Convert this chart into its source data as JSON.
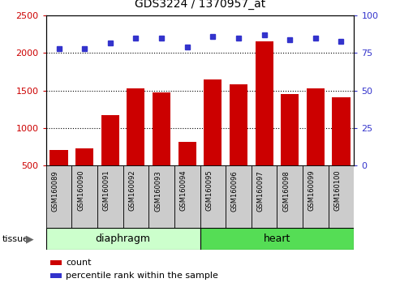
{
  "title": "GDS3224 / 1370957_at",
  "categories": [
    "GSM160089",
    "GSM160090",
    "GSM160091",
    "GSM160092",
    "GSM160093",
    "GSM160094",
    "GSM160095",
    "GSM160096",
    "GSM160097",
    "GSM160098",
    "GSM160099",
    "GSM160100"
  ],
  "counts": [
    700,
    720,
    1170,
    1530,
    1470,
    810,
    1650,
    1580,
    2160,
    1450,
    1530,
    1410
  ],
  "percentiles": [
    78,
    78,
    82,
    85,
    85,
    79,
    86,
    85,
    87,
    84,
    85,
    83
  ],
  "bar_color": "#cc0000",
  "dot_color": "#3333cc",
  "ylim_left": [
    500,
    2500
  ],
  "ylim_right": [
    0,
    100
  ],
  "yticks_left": [
    500,
    1000,
    1500,
    2000,
    2500
  ],
  "yticks_right": [
    0,
    25,
    50,
    75,
    100
  ],
  "grid_yticks": [
    1000,
    1500,
    2000
  ],
  "tissue_groups": [
    {
      "label": "diaphragm",
      "start": 0,
      "end": 5,
      "color": "#ccffcc"
    },
    {
      "label": "heart",
      "start": 6,
      "end": 11,
      "color": "#55dd55"
    }
  ],
  "tissue_label": "tissue",
  "legend_count": "count",
  "legend_percentile": "percentile rank within the sample",
  "col_bg_color": "#cccccc"
}
